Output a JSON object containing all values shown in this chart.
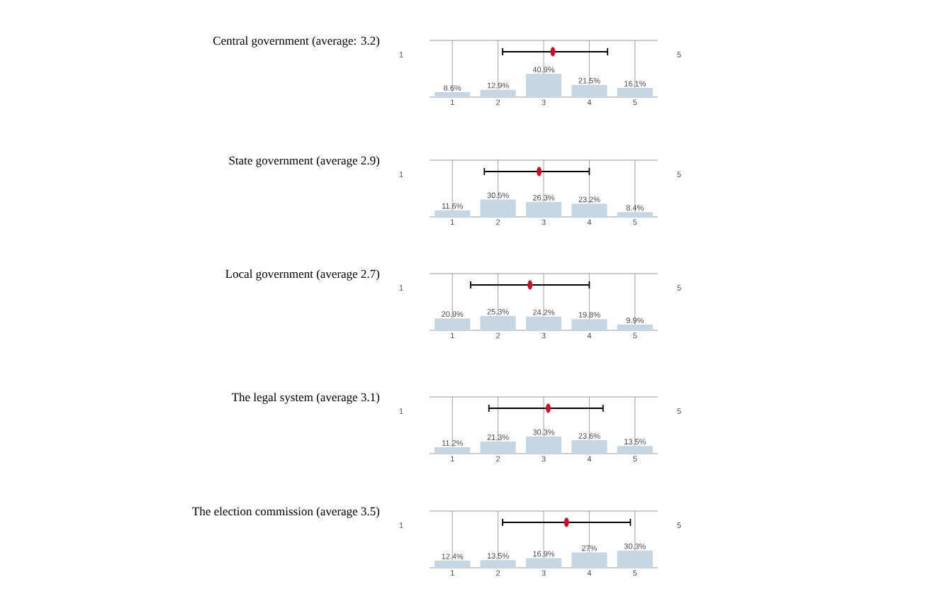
{
  "chart_data": [
    {
      "type": "bar",
      "title": "Central government (average: 3.2)",
      "x": [
        1,
        2,
        3,
        4,
        5
      ],
      "xlim": [
        0.5,
        5.5
      ],
      "xticks": [
        1,
        2,
        3,
        4,
        5
      ],
      "ylim": [
        0,
        100
      ],
      "tick_labels": "x",
      "grid": "x",
      "annotations": [
        "1",
        "5"
      ],
      "series": [
        {
          "color": "#c6d6e2",
          "values": [
            8.6,
            12.9,
            40.9,
            21.5,
            16.1
          ],
          "value_labels": [
            "8.6%",
            "12.9%",
            "40.9%",
            "21.5%",
            "16.1%"
          ]
        },
        {
          "type": "scatter",
          "color": "#c0122c",
          "x": [
            3.2
          ],
          "values": [
            80
          ],
          "xerrors": [
            [
              2.1,
              4.4
            ]
          ]
        }
      ]
    },
    {
      "type": "bar",
      "title": "State government (average 2.9)",
      "x": [
        1,
        2,
        3,
        4,
        5
      ],
      "xlim": [
        0.5,
        5.5
      ],
      "xticks": [
        1,
        2,
        3,
        4,
        5
      ],
      "ylim": [
        0,
        100
      ],
      "tick_labels": "x",
      "grid": "x",
      "annotations": [
        "1",
        "5"
      ],
      "series": [
        {
          "color": "#c6d6e2",
          "values": [
            11.6,
            30.5,
            26.3,
            23.2,
            8.4
          ],
          "value_labels": [
            "11.6%",
            "30.5%",
            "26.3%",
            "23.2%",
            "8.4%"
          ]
        },
        {
          "type": "scatter",
          "color": "#c0122c",
          "x": [
            2.9
          ],
          "values": [
            80
          ],
          "xerrors": [
            [
              1.7,
              4.0
            ]
          ]
        }
      ]
    },
    {
      "type": "bar",
      "title": "Local government (average 2.7)",
      "x": [
        1,
        2,
        3,
        4,
        5
      ],
      "xlim": [
        0.5,
        5.5
      ],
      "xticks": [
        1,
        2,
        3,
        4,
        5
      ],
      "ylim": [
        0,
        100
      ],
      "tick_labels": "x",
      "grid": "x",
      "annotations": [
        "1",
        "5"
      ],
      "series": [
        {
          "color": "#c6d6e2",
          "values": [
            20.9,
            25.3,
            24.2,
            19.8,
            9.9
          ],
          "value_labels": [
            "20.9%",
            "25.3%",
            "24.2%",
            "19.8%",
            "9.9%"
          ]
        },
        {
          "type": "scatter",
          "color": "#c0122c",
          "x": [
            2.7
          ],
          "values": [
            80
          ],
          "xerrors": [
            [
              1.4,
              4.0
            ]
          ]
        }
      ]
    },
    {
      "type": "bar",
      "title": "The legal system (average 3.1)",
      "x": [
        1,
        2,
        3,
        4,
        5
      ],
      "xlim": [
        0.5,
        5.5
      ],
      "xticks": [
        1,
        2,
        3,
        4,
        5
      ],
      "ylim": [
        0,
        100
      ],
      "tick_labels": "x",
      "grid": "x",
      "annotations": [
        "1",
        "5"
      ],
      "series": [
        {
          "color": "#c6d6e2",
          "values": [
            11.2,
            21.3,
            30.3,
            23.6,
            13.5
          ],
          "value_labels": [
            "11.2%",
            "21.3%",
            "30.3%",
            "23.6%",
            "13.5%"
          ]
        },
        {
          "type": "scatter",
          "color": "#c0122c",
          "x": [
            3.1
          ],
          "values": [
            80
          ],
          "xerrors": [
            [
              1.8,
              4.3
            ]
          ]
        }
      ]
    },
    {
      "type": "bar",
      "title": "The election commission (average 3.5)",
      "x": [
        1,
        2,
        3,
        4,
        5
      ],
      "xlim": [
        0.5,
        5.5
      ],
      "xticks": [
        1,
        2,
        3,
        4,
        5
      ],
      "ylim": [
        0,
        100
      ],
      "tick_labels": "x",
      "grid": "x",
      "annotations": [
        "1",
        "5"
      ],
      "series": [
        {
          "color": "#c6d6e2",
          "values": [
            12.4,
            13.5,
            16.9,
            27,
            30.3
          ],
          "value_labels": [
            "12.4%",
            "13.5%",
            "16.9%",
            "27%",
            "30.3%"
          ]
        },
        {
          "type": "scatter",
          "color": "#c0122c",
          "x": [
            3.5
          ],
          "values": [
            80
          ],
          "xerrors": [
            [
              2.1,
              4.9
            ]
          ]
        }
      ]
    }
  ]
}
